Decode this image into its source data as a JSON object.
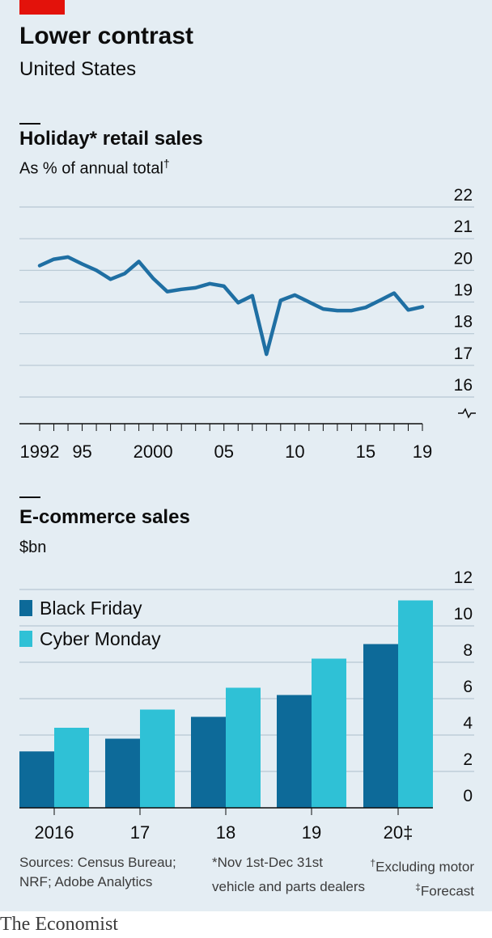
{
  "header": {
    "title": "Lower contrast",
    "subtitle": "United States"
  },
  "colors": {
    "background": "#e4edf3",
    "brand_red": "#e3120b",
    "line": "#1f6fa3",
    "black_friday": "#0d6a99",
    "cyber_monday": "#2fc1d6"
  },
  "chart_data": [
    {
      "type": "line",
      "title": "Holiday* retail sales",
      "subtitle": "As % of annual total",
      "subtitle_mark": "†",
      "x": [
        1992,
        1993,
        1994,
        1995,
        1996,
        1997,
        1998,
        1999,
        2000,
        2001,
        2002,
        2003,
        2004,
        2005,
        2006,
        2007,
        2008,
        2009,
        2010,
        2011,
        2012,
        2013,
        2014,
        2015,
        2016,
        2017,
        2018,
        2019
      ],
      "series": [
        {
          "values": [
            20.15,
            20.35,
            20.42,
            20.2,
            20.0,
            19.72,
            19.9,
            20.28,
            19.75,
            19.33,
            19.4,
            19.45,
            19.58,
            19.5,
            18.98,
            19.2,
            17.35,
            19.05,
            19.22,
            19.0,
            18.78,
            18.73,
            18.73,
            18.83,
            19.05,
            19.28,
            18.75,
            18.85
          ]
        }
      ],
      "x_ticks": [
        "1992",
        "95",
        "2000",
        "05",
        "10",
        "15",
        "19"
      ],
      "x_tick_values": [
        1992,
        1995,
        2000,
        2005,
        2010,
        2015,
        2019
      ],
      "y_ticks": [
        "22",
        "21",
        "20",
        "19",
        "18",
        "17",
        "16"
      ],
      "y_tick_values": [
        22,
        21,
        20,
        19,
        18,
        17,
        16
      ],
      "ylim": [
        15.2,
        22
      ],
      "axis_break": true,
      "grid": true
    },
    {
      "type": "bar",
      "title": "E-commerce sales",
      "subtitle": "$bn",
      "categories": [
        "2016",
        "17",
        "18",
        "19",
        "20‡"
      ],
      "series": [
        {
          "name": "Black Friday",
          "values": [
            3.1,
            3.8,
            5.0,
            6.2,
            9.0
          ]
        },
        {
          "name": "Cyber Monday",
          "values": [
            4.4,
            5.4,
            6.6,
            8.2,
            11.4
          ]
        }
      ],
      "y_ticks": [
        "12",
        "10",
        "8",
        "6",
        "4",
        "2",
        "0"
      ],
      "y_tick_values": [
        12,
        10,
        8,
        6,
        4,
        2,
        0
      ],
      "ylim": [
        0,
        12
      ],
      "legend_position": "top-left",
      "grid": true
    }
  ],
  "footnotes": {
    "sources": [
      "Sources: Census Bureau;",
      "NRF; Adobe Analytics"
    ],
    "note_holiday_1": "*Nov 1st-Dec 31st",
    "note_holiday_2": "vehicle and parts dealers",
    "note_dagger_mark": "†",
    "note_dagger_1": "Excluding motor",
    "note_dfc_mark": "‡",
    "note_dfc_text": "Forecast"
  },
  "footer": {
    "brand": "The Economist"
  }
}
